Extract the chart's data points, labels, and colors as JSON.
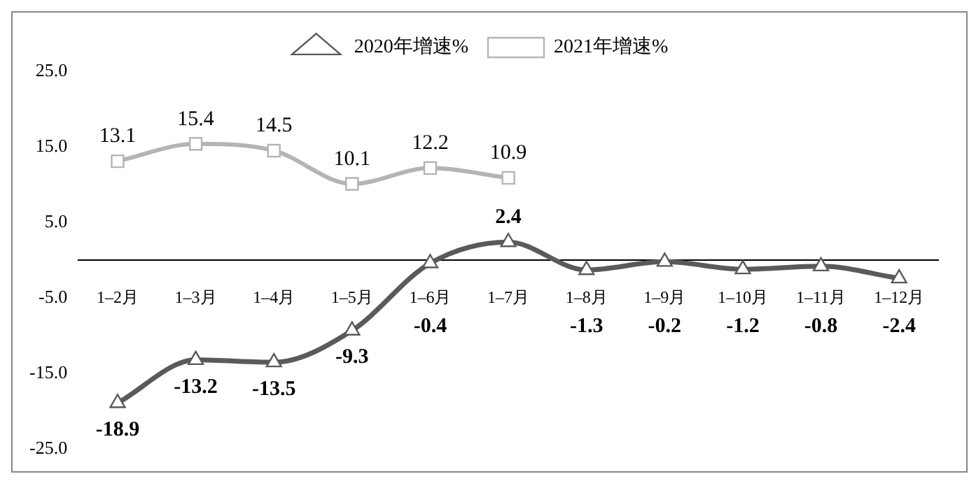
{
  "chart_data": {
    "type": "line",
    "categories": [
      "1–2月",
      "1–3月",
      "1–4月",
      "1–5月",
      "1–6月",
      "1–7月",
      "1–8月",
      "1–9月",
      "1–10月",
      "1–11月",
      "1–12月"
    ],
    "series": [
      {
        "name": "2020年增速%",
        "color": "#5a5a5a",
        "marker": "triangle",
        "values": [
          -18.9,
          -13.2,
          -13.5,
          -9.3,
          -0.4,
          2.4,
          -1.3,
          -0.2,
          -1.2,
          -0.8,
          -2.4
        ]
      },
      {
        "name": "2021年增速%",
        "color": "#b4b4b4",
        "marker": "square",
        "values": [
          13.1,
          15.4,
          14.5,
          10.1,
          12.2,
          10.9,
          null,
          null,
          null,
          null,
          null
        ]
      }
    ],
    "ylim": [
      -25,
      25
    ],
    "yticks": [
      {
        "value": -25,
        "label": "-25.0"
      },
      {
        "value": -15,
        "label": "-15.0"
      },
      {
        "value": -5,
        "label": "-5.0"
      },
      {
        "value": 5,
        "label": "5.0"
      },
      {
        "value": 15,
        "label": "15.0"
      },
      {
        "value": 25,
        "label": "25.0"
      }
    ],
    "grid": false,
    "legend": "top",
    "data_labels": true
  }
}
